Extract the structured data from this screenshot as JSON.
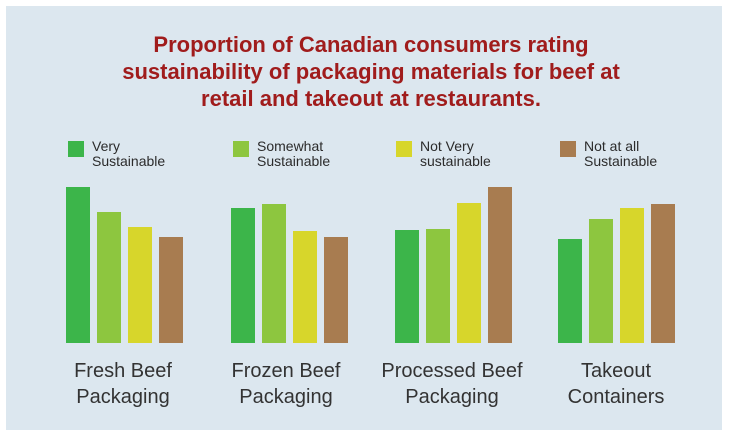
{
  "chart_data": {
    "type": "bar",
    "title_lines": [
      "Proportion of Canadian consumers rating",
      "sustainability of packaging materials for beef at",
      "retail and takeout at restaurants."
    ],
    "categories": [
      "Fresh Beef Packaging",
      "Frozen Beef Packaging",
      "Processed Beef Packaging",
      "Takeout Containers"
    ],
    "category_label_lines": [
      [
        "Fresh Beef",
        "Packaging"
      ],
      [
        "Frozen Beef",
        "Packaging"
      ],
      [
        "Processed Beef",
        "Packaging"
      ],
      [
        "Takeout",
        "Containers"
      ]
    ],
    "series": [
      {
        "name": "Very Sustainable",
        "label_lines": [
          "Very",
          "Sustainable"
        ],
        "color": "#3cb54a",
        "values": [
          156,
          135,
          113,
          104
        ]
      },
      {
        "name": "Somewhat Sustainable",
        "label_lines": [
          "Somewhat",
          "Sustainable"
        ],
        "color": "#8dc63f",
        "values": [
          131,
          139,
          114,
          124
        ]
      },
      {
        "name": "Not Very sustainable",
        "label_lines": [
          "Not Very",
          "sustainable"
        ],
        "color": "#d7d62b",
        "values": [
          116,
          112,
          140,
          135
        ]
      },
      {
        "name": "Not at all Sustainable",
        "label_lines": [
          "Not at all",
          "Sustainable"
        ],
        "color": "#a87c50",
        "values": [
          106,
          106,
          156,
          139
        ]
      }
    ],
    "y_axis_shown": false,
    "grid": false,
    "legend_position": "top"
  }
}
